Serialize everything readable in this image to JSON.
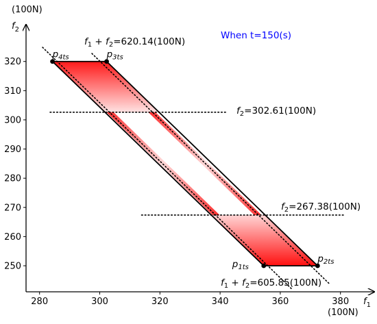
{
  "chart_data": {
    "type": "area",
    "title": "",
    "time_label": "When t=150(s)",
    "xlabel": "f",
    "xlabel_sub": "1",
    "ylabel": "f",
    "ylabel_sub": "2",
    "x_unit": "(100N)",
    "y_unit": "(100N)",
    "xlim": [
      275.5,
      385
    ],
    "ylim": [
      241.5,
      332
    ],
    "x_ticks": [
      280,
      300,
      320,
      340,
      360,
      380
    ],
    "y_ticks": [
      250,
      260,
      270,
      280,
      290,
      300,
      310,
      320
    ],
    "region": {
      "fill_color": "#ff0000",
      "vertices": [
        {
          "name": "p4ts",
          "f1": 284.3,
          "f2": 320
        },
        {
          "name": "p3ts",
          "f1": 302.3,
          "f2": 320
        },
        {
          "name": "p2ts",
          "f1": 372.4,
          "f2": 250
        },
        {
          "name": "p1ts",
          "f1": 354.5,
          "f2": 250
        }
      ]
    },
    "points": [
      {
        "id": "p4ts",
        "label_main": "p",
        "label_sub": "4ts",
        "f1": 284.3,
        "f2": 320
      },
      {
        "id": "p3ts",
        "label_main": "p",
        "label_sub": "3ts",
        "f1": 302.3,
        "f2": 320
      },
      {
        "id": "p2ts",
        "label_main": "p",
        "label_sub": "2ts",
        "f1": 372.4,
        "f2": 250
      },
      {
        "id": "p1ts",
        "label_main": "p",
        "label_sub": "1ts",
        "f1": 354.5,
        "f2": 250
      }
    ],
    "constraint_lines": [
      {
        "id": "sum-upper",
        "kind": "sum",
        "value": 620.14,
        "f1_range": [
          297.4,
          376.3
        ],
        "label_main": "f",
        "label_sub1": "1",
        "label_plus": " + ",
        "label_main2": "f",
        "label_sub2": "2",
        "label_rest": "=620.14(100N)"
      },
      {
        "id": "sum-lower",
        "kind": "sum",
        "value": 605.85,
        "f1_range": [
          281.0,
          363.8
        ],
        "label_main": "f",
        "label_sub1": "1",
        "label_plus": " + ",
        "label_main2": "f",
        "label_sub2": "2",
        "label_rest": "=605.85(100N)"
      },
      {
        "id": "f2-upper",
        "kind": "f2",
        "value": 302.61,
        "f1_range": [
          283.5,
          342.3
        ],
        "label_main": "f",
        "label_sub1": "2",
        "label_rest": "=302.61(100N)"
      },
      {
        "id": "f2-lower",
        "kind": "f2",
        "value": 267.38,
        "f1_range": [
          313.9,
          381.5
        ],
        "label_main": "f",
        "label_sub1": "2",
        "label_rest": "=267.38(100N)"
      }
    ]
  }
}
